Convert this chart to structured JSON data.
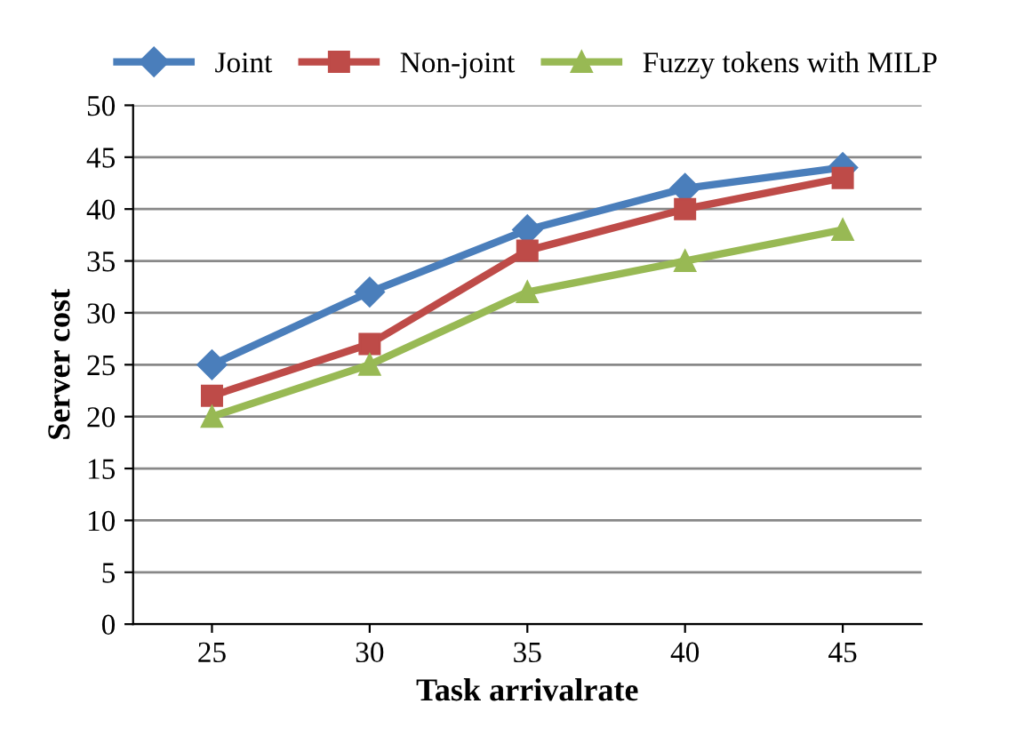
{
  "chart_data": {
    "type": "line",
    "xlabel": "Task arrivalrate",
    "ylabel": "Server cost",
    "categories": [
      "25",
      "30",
      "35",
      "40",
      "45"
    ],
    "series": [
      {
        "name": "Joint",
        "color": "#4a7ebb",
        "marker": "diamond",
        "values": [
          25,
          32,
          38,
          42,
          44
        ]
      },
      {
        "name": "Non-joint",
        "color": "#be4b48",
        "marker": "square",
        "values": [
          22,
          27,
          36,
          40,
          43
        ]
      },
      {
        "name": "Fuzzy tokens with MILP",
        "color": "#98b954",
        "marker": "triangle",
        "values": [
          20,
          25,
          32,
          35,
          38
        ]
      }
    ],
    "ylim": [
      0,
      50
    ],
    "yticks": [
      0,
      5,
      10,
      15,
      20,
      25,
      30,
      35,
      40,
      45,
      50
    ],
    "grid": "y",
    "legend": "top",
    "line_style": "solid"
  }
}
